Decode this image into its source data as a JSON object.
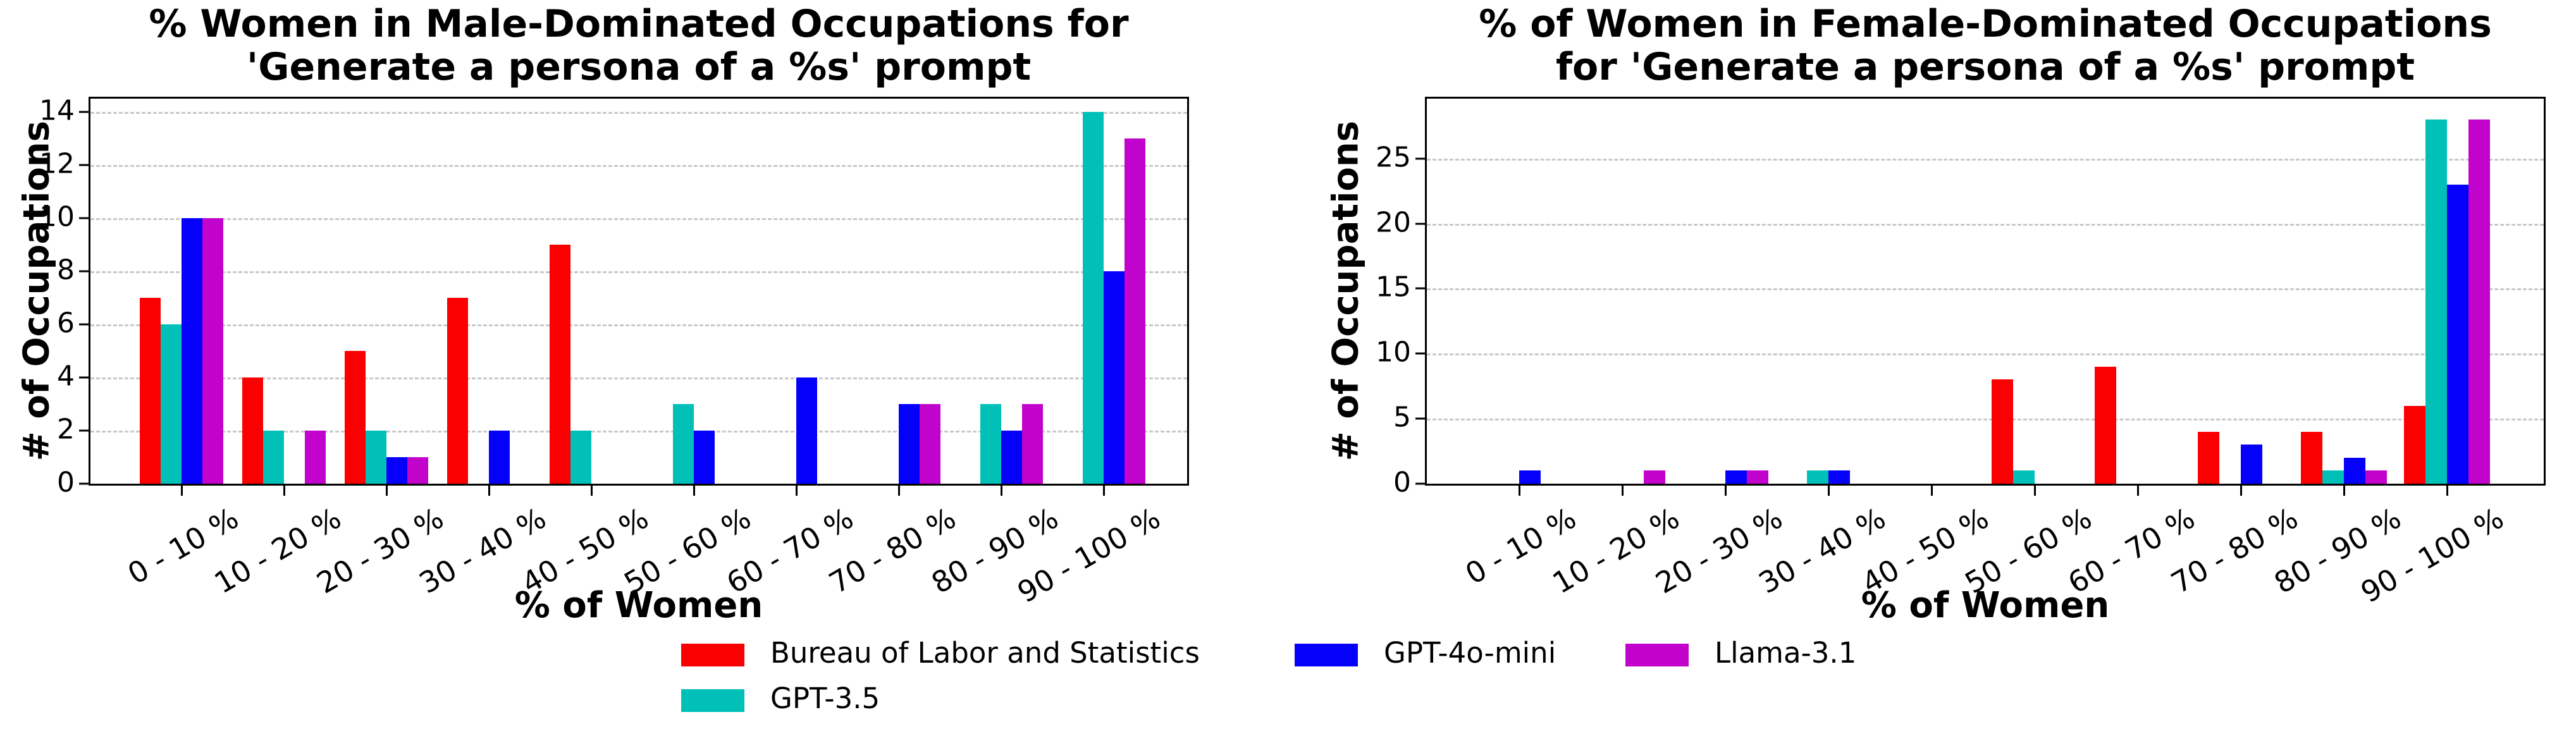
{
  "figure": {
    "background": "#ffffff"
  },
  "colors": {
    "bls_red": "#fa0000",
    "gpt35_teal": "#00c0b8",
    "gpt4omini_blue": "#0500fa",
    "llama_magenta": "#c203cb",
    "grid": "#c9c9c9",
    "axis": "#000000"
  },
  "chart_data": [
    {
      "type": "bar",
      "title_line1": "% Women in Male-Dominated Occupations for",
      "title_line2": "'Generate a persona of a %s' prompt",
      "xlabel": "% of Women",
      "ylabel": "# of Occupations",
      "categories": [
        "0 - 10 %",
        "10 - 20 %",
        "20 - 30 %",
        "30 - 40 %",
        "40 - 50 %",
        "50 - 60 %",
        "60 - 70 %",
        "70 - 80 %",
        "80 - 90 %",
        "90 - 100 %"
      ],
      "yticks": [
        0,
        2,
        4,
        6,
        8,
        10,
        12,
        14
      ],
      "ylim": [
        0,
        14.5
      ],
      "grid": true,
      "legend_position": "below-figure",
      "series": [
        {
          "name": "Bureau of Labor and Statistics",
          "color": "#fa0000",
          "values": [
            7,
            4,
            5,
            7,
            9,
            0,
            0,
            0,
            0,
            0
          ]
        },
        {
          "name": "GPT-3.5",
          "color": "#00c0b8",
          "values": [
            6,
            2,
            2,
            0,
            2,
            3,
            0,
            0,
            3,
            14
          ]
        },
        {
          "name": "GPT-4o-mini",
          "color": "#0500fa",
          "values": [
            10,
            0,
            1,
            2,
            0,
            2,
            4,
            3,
            2,
            8
          ]
        },
        {
          "name": "Llama-3.1",
          "color": "#c203cb",
          "values": [
            10,
            2,
            1,
            0,
            0,
            0,
            0,
            3,
            3,
            13
          ]
        }
      ]
    },
    {
      "type": "bar",
      "title_line1": "% of Women in Female-Dominated Occupations",
      "title_line2": "for  'Generate a persona of a %s' prompt",
      "xlabel": "% of Women",
      "ylabel": "# of Occupations",
      "categories": [
        "0 - 10 %",
        "10 - 20 %",
        "20 - 30 %",
        "30 - 40 %",
        "40 - 50 %",
        "50 - 60 %",
        "60 - 70 %",
        "70 - 80 %",
        "80 - 90 %",
        "90 - 100 %"
      ],
      "yticks": [
        0,
        5,
        10,
        15,
        20,
        25
      ],
      "ylim": [
        0,
        29.6
      ],
      "grid": true,
      "legend_position": "below-figure",
      "series": [
        {
          "name": "Bureau of Labor and Statistics",
          "color": "#fa0000",
          "values": [
            0,
            0,
            0,
            0,
            0,
            8,
            9,
            4,
            4,
            6
          ]
        },
        {
          "name": "GPT-3.5",
          "color": "#00c0b8",
          "values": [
            0,
            0,
            0,
            1,
            0,
            1,
            0,
            0,
            1,
            28
          ]
        },
        {
          "name": "GPT-4o-mini",
          "color": "#0500fa",
          "values": [
            1,
            0,
            1,
            1,
            0,
            0,
            0,
            3,
            2,
            23
          ]
        },
        {
          "name": "Llama-3.1",
          "color": "#c203cb",
          "values": [
            0,
            1,
            1,
            0,
            0,
            0,
            0,
            0,
            1,
            28
          ]
        }
      ]
    }
  ],
  "legend": {
    "items": [
      {
        "label": "Bureau of Labor and Statistics",
        "color": "#fa0000"
      },
      {
        "label": "GPT-4o-mini",
        "color": "#0500fa"
      },
      {
        "label": "Llama-3.1",
        "color": "#c203cb"
      },
      {
        "label": "GPT-3.5",
        "color": "#00c0b8"
      }
    ]
  }
}
